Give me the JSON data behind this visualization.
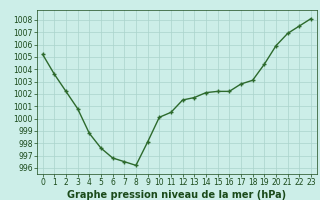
{
  "x": [
    0,
    1,
    2,
    3,
    4,
    5,
    6,
    7,
    8,
    9,
    10,
    11,
    12,
    13,
    14,
    15,
    16,
    17,
    18,
    19,
    20,
    21,
    22,
    23
  ],
  "y": [
    1005.2,
    1003.6,
    1002.2,
    1000.8,
    998.8,
    997.6,
    996.8,
    996.5,
    996.2,
    998.1,
    1000.1,
    1000.5,
    1001.5,
    1001.7,
    1002.1,
    1002.2,
    1002.2,
    1002.8,
    1003.1,
    1004.4,
    1005.9,
    1006.9,
    1007.5,
    1008.1
  ],
  "line_color": "#2d6a2d",
  "marker": "+",
  "marker_size": 3,
  "line_width": 1.0,
  "bg_color": "#cceee8",
  "grid_color": "#aad4cc",
  "xlabel": "Graphe pression niveau de la mer (hPa)",
  "xlabel_fontsize": 7,
  "xlabel_color": "#1a4a1a",
  "tick_color": "#1a4a1a",
  "tick_fontsize": 5.5,
  "ylim": [
    995.5,
    1008.8
  ],
  "yticks": [
    996,
    997,
    998,
    999,
    1000,
    1001,
    1002,
    1003,
    1004,
    1005,
    1006,
    1007,
    1008
  ],
  "xlim": [
    -0.5,
    23.5
  ],
  "xticks": [
    0,
    1,
    2,
    3,
    4,
    5,
    6,
    7,
    8,
    9,
    10,
    11,
    12,
    13,
    14,
    15,
    16,
    17,
    18,
    19,
    20,
    21,
    22,
    23
  ]
}
